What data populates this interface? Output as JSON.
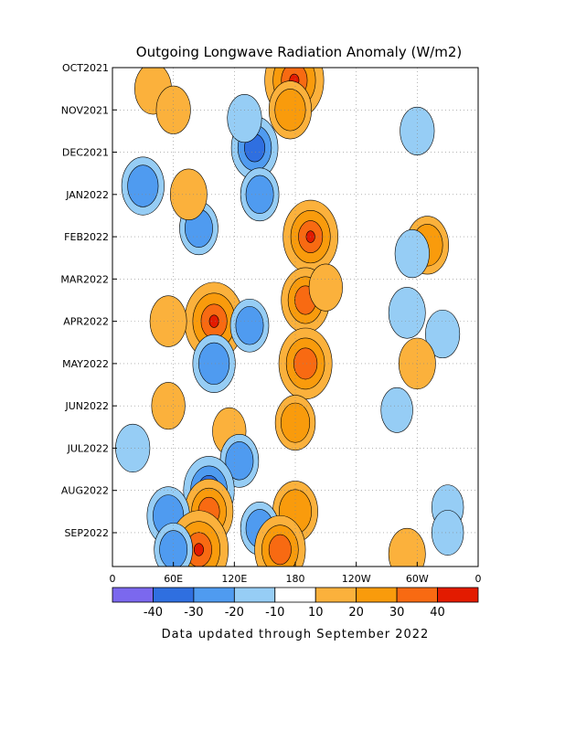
{
  "chart_data": {
    "type": "heatmap",
    "title": "Outgoing Longwave Radiation Anomaly (W/m2)",
    "x_tick_labels": [
      "0",
      "60E",
      "120E",
      "180",
      "120W",
      "60W",
      "0"
    ],
    "y_tick_labels": [
      "OCT2021",
      "NOV2021",
      "DEC2021",
      "JAN2022",
      "FEB2022",
      "MAR2022",
      "APR2022",
      "MAY2022",
      "JUN2022",
      "JUL2022",
      "AUG2022",
      "SEP2022"
    ],
    "colorbar": {
      "tick_labels": [
        "-40",
        "-30",
        "-20",
        "-10",
        "10",
        "20",
        "30",
        "40"
      ],
      "colors": [
        "#7b68ee",
        "#2f6fe0",
        "#4f9bf0",
        "#96cdf5",
        "#ffffff",
        "#fbb13c",
        "#f99b0c",
        "#f86a12",
        "#e31b00"
      ]
    },
    "footer": "Data updated through September 2022",
    "grid": true,
    "anomaly_features": [
      {
        "lon": 179,
        "time": 0.3,
        "value": 45
      },
      {
        "lon": 175,
        "time": 1.0,
        "value": 25
      },
      {
        "lon": 40,
        "time": 0.5,
        "value": 18
      },
      {
        "lon": 60,
        "time": 1.0,
        "value": 15
      },
      {
        "lon": 140,
        "time": 1.9,
        "value": -30
      },
      {
        "lon": 130,
        "time": 1.2,
        "value": -15
      },
      {
        "lon": 30,
        "time": 2.8,
        "value": -25
      },
      {
        "lon": 85,
        "time": 3.8,
        "value": -20
      },
      {
        "lon": 145,
        "time": 3.0,
        "value": -20
      },
      {
        "lon": 75,
        "time": 3.0,
        "value": 18
      },
      {
        "lon": 195,
        "time": 4.0,
        "value": 40
      },
      {
        "lon": 190,
        "time": 5.5,
        "value": 32
      },
      {
        "lon": 100,
        "time": 6.0,
        "value": 45
      },
      {
        "lon": 55,
        "time": 6.0,
        "value": 18
      },
      {
        "lon": 210,
        "time": 5.2,
        "value": 14
      },
      {
        "lon": 190,
        "time": 7.0,
        "value": 38
      },
      {
        "lon": 100,
        "time": 7.0,
        "value": -25
      },
      {
        "lon": 135,
        "time": 6.1,
        "value": -20
      },
      {
        "lon": 55,
        "time": 8.0,
        "value": 14
      },
      {
        "lon": 180,
        "time": 8.4,
        "value": 22
      },
      {
        "lon": 115,
        "time": 8.6,
        "value": 14
      },
      {
        "lon": 20,
        "time": 9.0,
        "value": -15
      },
      {
        "lon": 125,
        "time": 9.3,
        "value": -20
      },
      {
        "lon": 95,
        "time": 10.0,
        "value": -35
      },
      {
        "lon": 95,
        "time": 10.5,
        "value": 32
      },
      {
        "lon": 180,
        "time": 10.5,
        "value": 28
      },
      {
        "lon": 55,
        "time": 10.6,
        "value": -25
      },
      {
        "lon": 145,
        "time": 10.9,
        "value": -20
      },
      {
        "lon": 85,
        "time": 11.4,
        "value": 45
      },
      {
        "lon": 165,
        "time": 11.4,
        "value": 35
      },
      {
        "lon": 60,
        "time": 11.4,
        "value": -20
      },
      {
        "lon": 300,
        "time": 1.5,
        "value": -15
      },
      {
        "lon": 310,
        "time": 4.2,
        "value": 25
      },
      {
        "lon": 295,
        "time": 4.4,
        "value": -15
      },
      {
        "lon": 290,
        "time": 5.8,
        "value": -18
      },
      {
        "lon": 325,
        "time": 6.3,
        "value": -15
      },
      {
        "lon": 300,
        "time": 7.0,
        "value": 18
      },
      {
        "lon": 280,
        "time": 8.1,
        "value": -12
      },
      {
        "lon": 330,
        "time": 10.4,
        "value": -12
      },
      {
        "lon": 290,
        "time": 11.5,
        "value": 18
      },
      {
        "lon": 330,
        "time": 11.0,
        "value": -12
      }
    ]
  }
}
